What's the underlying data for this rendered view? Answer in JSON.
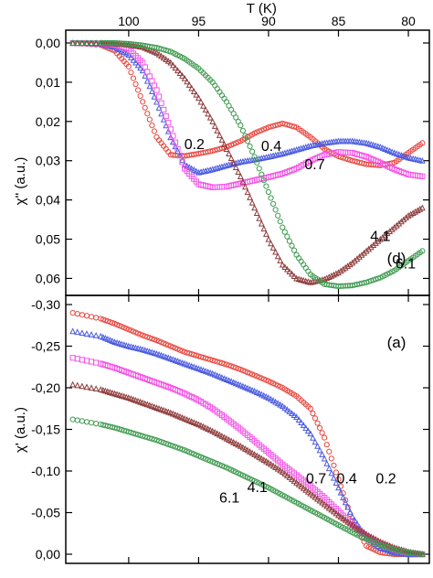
{
  "figure": {
    "note": "mirrored-rendering",
    "mirrored": true
  },
  "chart_data": [
    {
      "panel": "d",
      "type": "scatter",
      "xlabel": "T (K)",
      "ylabel": "χ'' (a.u.)",
      "xlim": [
        78.5,
        104.5
      ],
      "ylim": [
        0.0,
        0.062
      ],
      "x_ticks": [
        80,
        85,
        90,
        95,
        100
      ],
      "x_tick_labels": [
        "80",
        "85",
        "90",
        "95",
        "100"
      ],
      "y_ticks": [
        0.0,
        0.01,
        0.02,
        0.03,
        0.04,
        0.05,
        0.06
      ],
      "y_tick_labels": [
        "0,00",
        "0,01",
        "0,02",
        "0,03",
        "0,04",
        "0,05",
        "0,06"
      ],
      "y_inverted": true,
      "series": [
        {
          "name": "0.2",
          "color": "#e8473f",
          "marker": "circle",
          "x": [
            79,
            80,
            81,
            82,
            83,
            84,
            85,
            86,
            87,
            88,
            89,
            90,
            91,
            92,
            93,
            94,
            95,
            96,
            97,
            98,
            99,
            100,
            101,
            102,
            104
          ],
          "y": [
            0.0255,
            0.028,
            0.0305,
            0.0312,
            0.0309,
            0.03,
            0.0289,
            0.027,
            0.024,
            0.0215,
            0.0205,
            0.0215,
            0.023,
            0.025,
            0.0265,
            0.0275,
            0.0282,
            0.0288,
            0.0285,
            0.024,
            0.015,
            0.006,
            0.002,
            0.0005,
            0.0
          ]
        },
        {
          "name": "0.4",
          "color": "#4a5be0",
          "marker": "triangle",
          "x": [
            79,
            80,
            81,
            82,
            83,
            84,
            85,
            86,
            87,
            88,
            89,
            90,
            91,
            92,
            93,
            94,
            95,
            96,
            97,
            98,
            99,
            100,
            101,
            102,
            104
          ],
          "y": [
            0.03,
            0.0292,
            0.028,
            0.0265,
            0.0255,
            0.025,
            0.025,
            0.0255,
            0.0262,
            0.0272,
            0.0282,
            0.029,
            0.0297,
            0.0303,
            0.0312,
            0.0322,
            0.033,
            0.031,
            0.024,
            0.015,
            0.007,
            0.003,
            0.001,
            0.0002,
            0.0
          ]
        },
        {
          "name": "0.7",
          "color": "#f255e6",
          "marker": "square",
          "x": [
            79,
            80,
            81,
            82,
            83,
            84,
            85,
            86,
            87,
            88,
            89,
            90,
            91,
            92,
            93,
            94,
            95,
            96,
            97,
            98,
            99,
            100,
            101,
            102,
            104
          ],
          "y": [
            0.034,
            0.0335,
            0.0322,
            0.0305,
            0.029,
            0.028,
            0.0278,
            0.0285,
            0.03,
            0.032,
            0.0333,
            0.0342,
            0.035,
            0.0358,
            0.0366,
            0.0368,
            0.036,
            0.032,
            0.022,
            0.012,
            0.005,
            0.0015,
            0.0005,
            0.0001,
            0.0
          ]
        },
        {
          "name": "4.1",
          "color": "#8e3b3b",
          "marker": "triangle",
          "x": [
            79,
            80,
            81,
            82,
            83,
            84,
            85,
            86,
            87,
            88,
            89,
            90,
            91,
            92,
            93,
            94,
            95,
            96,
            97,
            98,
            99,
            100,
            101,
            102,
            104
          ],
          "y": [
            0.042,
            0.044,
            0.047,
            0.05,
            0.053,
            0.056,
            0.0585,
            0.0602,
            0.061,
            0.06,
            0.0565,
            0.05,
            0.042,
            0.034,
            0.027,
            0.02,
            0.014,
            0.009,
            0.005,
            0.0025,
            0.001,
            0.0004,
            0.0001,
            0.0,
            0.0
          ]
        },
        {
          "name": "6.1",
          "color": "#3f9a4f",
          "marker": "circle",
          "x": [
            79,
            80,
            81,
            82,
            83,
            84,
            85,
            86,
            87,
            88,
            89,
            90,
            91,
            92,
            93,
            94,
            95,
            96,
            97,
            98,
            99,
            100,
            101,
            102,
            104
          ],
          "y": [
            0.053,
            0.0555,
            0.058,
            0.0598,
            0.061,
            0.0618,
            0.062,
            0.0615,
            0.059,
            0.054,
            0.047,
            0.038,
            0.029,
            0.021,
            0.015,
            0.01,
            0.0065,
            0.004,
            0.0022,
            0.0012,
            0.0006,
            0.0002,
            0.0,
            0.0,
            0.0
          ]
        }
      ]
    },
    {
      "panel": "a",
      "type": "scatter",
      "xlabel": "",
      "ylabel": "χ' (a.u.)",
      "xlim": [
        78.5,
        104.5
      ],
      "ylim": [
        0.0,
        0.3
      ],
      "y_ticks": [
        0.0,
        0.05,
        0.1,
        0.15,
        0.2,
        0.25,
        0.3
      ],
      "y_tick_labels": [
        "0,00",
        "-0,05",
        "-0,10",
        "-0,15",
        "-0,20",
        "-0,25",
        "-0,30"
      ],
      "y_inverted": false,
      "series": [
        {
          "name": "0.2",
          "color": "#e8473f",
          "marker": "circle",
          "x": [
            79,
            80,
            81,
            82,
            83,
            84,
            85,
            86,
            87,
            88,
            89,
            90,
            91,
            92,
            93,
            94,
            95,
            96,
            97,
            98,
            99,
            100,
            101,
            102,
            104
          ],
          "y": [
            0.0,
            0.0,
            0.0,
            0.002,
            0.01,
            0.04,
            0.09,
            0.14,
            0.175,
            0.19,
            0.2,
            0.208,
            0.215,
            0.222,
            0.228,
            0.233,
            0.238,
            0.243,
            0.25,
            0.257,
            0.263,
            0.27,
            0.277,
            0.283,
            0.29
          ]
        },
        {
          "name": "0.4",
          "color": "#4a5be0",
          "marker": "triangle",
          "x": [
            79,
            80,
            81,
            82,
            83,
            84,
            85,
            86,
            87,
            88,
            89,
            90,
            91,
            92,
            93,
            94,
            95,
            96,
            97,
            98,
            99,
            100,
            101,
            102,
            104
          ],
          "y": [
            0.0,
            0.0,
            0.002,
            0.008,
            0.02,
            0.045,
            0.08,
            0.115,
            0.145,
            0.165,
            0.178,
            0.188,
            0.196,
            0.203,
            0.21,
            0.217,
            0.223,
            0.229,
            0.235,
            0.241,
            0.246,
            0.25,
            0.255,
            0.262,
            0.268
          ]
        },
        {
          "name": "0.7",
          "color": "#f255e6",
          "marker": "square",
          "x": [
            79,
            80,
            81,
            82,
            83,
            84,
            85,
            86,
            87,
            88,
            89,
            90,
            91,
            92,
            93,
            94,
            95,
            96,
            97,
            98,
            99,
            100,
            101,
            102,
            104
          ],
          "y": [
            0.0,
            0.002,
            0.006,
            0.012,
            0.022,
            0.036,
            0.052,
            0.068,
            0.082,
            0.095,
            0.108,
            0.122,
            0.136,
            0.15,
            0.163,
            0.175,
            0.185,
            0.193,
            0.2,
            0.206,
            0.212,
            0.218,
            0.224,
            0.229,
            0.236
          ]
        },
        {
          "name": "4.1",
          "color": "#8e3b3b",
          "marker": "triangle",
          "x": [
            79,
            80,
            81,
            82,
            83,
            84,
            85,
            86,
            87,
            88,
            89,
            90,
            91,
            92,
            93,
            94,
            95,
            96,
            97,
            98,
            99,
            100,
            101,
            102,
            104
          ],
          "y": [
            0.0,
            0.003,
            0.008,
            0.015,
            0.024,
            0.035,
            0.047,
            0.06,
            0.073,
            0.086,
            0.099,
            0.11,
            0.12,
            0.13,
            0.139,
            0.148,
            0.156,
            0.163,
            0.17,
            0.176,
            0.182,
            0.188,
            0.193,
            0.198,
            0.204
          ]
        },
        {
          "name": "6.1",
          "color": "#3f9a4f",
          "marker": "circle",
          "x": [
            79,
            80,
            81,
            82,
            83,
            84,
            85,
            86,
            87,
            88,
            89,
            90,
            91,
            92,
            93,
            94,
            95,
            96,
            97,
            98,
            99,
            100,
            101,
            102,
            104
          ],
          "y": [
            0.0,
            0.002,
            0.006,
            0.011,
            0.018,
            0.026,
            0.035,
            0.044,
            0.053,
            0.062,
            0.071,
            0.08,
            0.088,
            0.096,
            0.104,
            0.111,
            0.118,
            0.125,
            0.131,
            0.137,
            0.142,
            0.147,
            0.152,
            0.156,
            0.162
          ]
        }
      ]
    }
  ],
  "panels": {
    "top": {
      "letter": "(d)"
    },
    "bottom": {
      "letter": "(a)"
    }
  }
}
